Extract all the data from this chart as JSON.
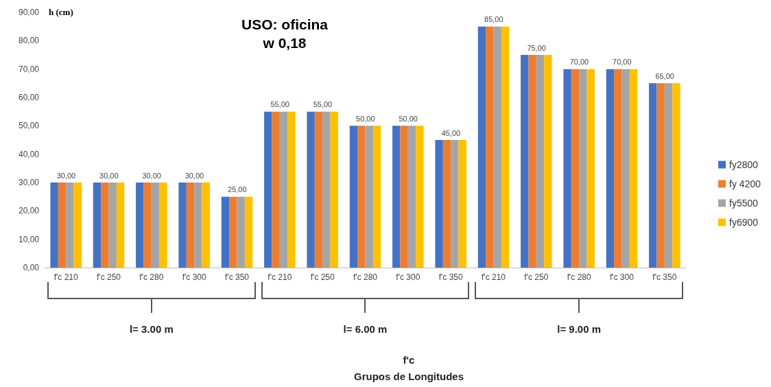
{
  "chart_data": {
    "type": "bar",
    "title": "USO: oficina",
    "subtitle": "w 0,18",
    "ylabel": "h (cm)",
    "categories": [
      "f'c 210",
      "f'c 250",
      "f'c 280",
      "f'c 300",
      "f'c 350",
      "f'c 210",
      "f'c 250",
      "f'c 280",
      "f'c 300",
      "f'c 350",
      "f'c 210",
      "f'c 250",
      "f'c 280",
      "f'c 300",
      "f'c 350"
    ],
    "series": [
      {
        "name": "fy2800",
        "color": "#4472c4",
        "values": [
          30,
          30,
          30,
          30,
          25,
          55,
          55,
          50,
          50,
          45,
          85,
          75,
          70,
          70,
          65
        ]
      },
      {
        "name": "fy 4200",
        "color": "#ed7d31",
        "values": [
          30,
          30,
          30,
          30,
          25,
          55,
          55,
          50,
          50,
          45,
          85,
          75,
          70,
          70,
          65
        ],
        "value_labels": [
          "30,00",
          "30,00",
          "30,00",
          "30,00",
          "25,00",
          "55,00",
          "55,00",
          "50,00",
          "50,00",
          "45,00",
          "85,00",
          "75,00",
          "70,00",
          "70,00",
          "65,00"
        ]
      },
      {
        "name": "fy5500",
        "color": "#a5a5a5",
        "values": [
          30,
          30,
          30,
          30,
          25,
          55,
          55,
          50,
          50,
          45,
          85,
          75,
          70,
          70,
          65
        ]
      },
      {
        "name": "fy6900",
        "color": "#ffc000",
        "values": [
          30,
          30,
          30,
          30,
          25,
          55,
          55,
          50,
          50,
          45,
          85,
          75,
          70,
          70,
          65
        ]
      }
    ],
    "ylim": [
      0,
      90
    ],
    "yticks": [
      {
        "value": 0,
        "label": "0,00"
      },
      {
        "value": 10,
        "label": "10,00"
      },
      {
        "value": 20,
        "label": "20,00"
      },
      {
        "value": 30,
        "label": "30,00"
      },
      {
        "value": 40,
        "label": "40,00"
      },
      {
        "value": 50,
        "label": "50,00"
      },
      {
        "value": 60,
        "label": "60,00"
      },
      {
        "value": 70,
        "label": "70,00"
      },
      {
        "value": 80,
        "label": "80,00"
      },
      {
        "value": 90,
        "label": "90,00"
      }
    ],
    "grid": false,
    "legend": "right",
    "annotations": [
      "l= 3.00 m",
      "l= 6.00 m",
      "l= 9.00 m",
      "f'c",
      "Grupos de Longitudes"
    ]
  }
}
